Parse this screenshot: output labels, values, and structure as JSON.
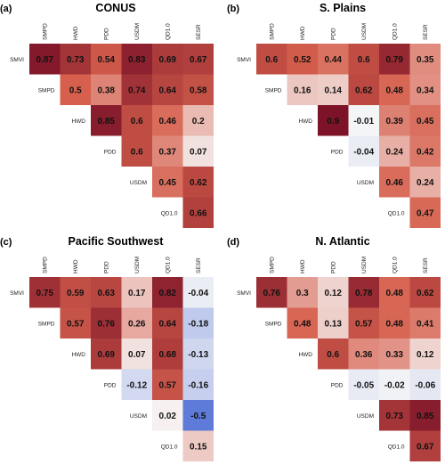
{
  "chart_data": [
    {
      "type": "heatmap",
      "panel_letter": "(a)",
      "title": "CONUS",
      "columns": [
        "SMPD",
        "HWD",
        "PDD",
        "USDM",
        "QD1.0",
        "SESR"
      ],
      "rows": [
        "SMVI",
        "SMPD",
        "HWD",
        "PDD",
        "USDM",
        "QD1.0"
      ],
      "values": [
        [
          0.87,
          0.73,
          0.54,
          0.83,
          0.69,
          0.67
        ],
        [
          null,
          0.5,
          0.38,
          0.74,
          0.64,
          0.58
        ],
        [
          null,
          null,
          0.85,
          0.6,
          0.46,
          0.2
        ],
        [
          null,
          null,
          null,
          0.6,
          0.37,
          0.07
        ],
        [
          null,
          null,
          null,
          null,
          0.45,
          0.62
        ],
        [
          null,
          null,
          null,
          null,
          null,
          0.66
        ]
      ],
      "labels": [
        [
          "0.87",
          "0.73",
          "0.54",
          "0.83",
          "0.69",
          "0.67"
        ],
        [
          null,
          "0.5",
          "0.38",
          "0.74",
          "0.64",
          "0.58"
        ],
        [
          null,
          null,
          "0.85",
          "0.6",
          "0.46",
          "0.2"
        ],
        [
          null,
          null,
          null,
          "0.6",
          "0.37",
          "0.07"
        ],
        [
          null,
          null,
          null,
          null,
          "0.45",
          "0.62"
        ],
        [
          null,
          null,
          null,
          null,
          null,
          "0.66"
        ]
      ],
      "color_range": [
        -1,
        1
      ]
    },
    {
      "type": "heatmap",
      "panel_letter": "(b)",
      "title": "S. Plains",
      "columns": [
        "SMPD",
        "HWD",
        "PDD",
        "USDM",
        "QD1.0",
        "SESR"
      ],
      "rows": [
        "SMVI",
        "SMPD",
        "HWD",
        "PDD",
        "USDM",
        "QD1.0"
      ],
      "values": [
        [
          0.6,
          0.52,
          0.44,
          0.6,
          0.79,
          0.35
        ],
        [
          null,
          0.16,
          0.14,
          0.62,
          0.48,
          0.34
        ],
        [
          null,
          null,
          0.9,
          -0.01,
          0.39,
          0.45
        ],
        [
          null,
          null,
          null,
          -0.04,
          0.24,
          0.42
        ],
        [
          null,
          null,
          null,
          null,
          0.46,
          0.24
        ],
        [
          null,
          null,
          null,
          null,
          null,
          0.47
        ]
      ],
      "labels": [
        [
          "0.6",
          "0.52",
          "0.44",
          "0.6",
          "0.79",
          "0.35"
        ],
        [
          null,
          "0.16",
          "0.14",
          "0.62",
          "0.48",
          "0.34"
        ],
        [
          null,
          null,
          "0.9",
          "-0.01",
          "0.39",
          "0.45"
        ],
        [
          null,
          null,
          null,
          "-0.04",
          "0.24",
          "0.42"
        ],
        [
          null,
          null,
          null,
          null,
          "0.46",
          "0.24"
        ],
        [
          null,
          null,
          null,
          null,
          null,
          "0.47"
        ]
      ],
      "color_range": [
        -1,
        1
      ]
    },
    {
      "type": "heatmap",
      "panel_letter": "(c)",
      "title": "Pacific Southwest",
      "columns": [
        "SMPD",
        "HWD",
        "PDD",
        "USDM",
        "QD1.0",
        "SESR"
      ],
      "rows": [
        "SMVI",
        "SMPD",
        "HWD",
        "PDD",
        "USDM",
        "QD1.0"
      ],
      "values": [
        [
          0.75,
          0.59,
          0.63,
          0.17,
          0.82,
          -0.04
        ],
        [
          null,
          0.57,
          0.76,
          0.26,
          0.64,
          -0.18
        ],
        [
          null,
          null,
          0.69,
          0.07,
          0.68,
          -0.13
        ],
        [
          null,
          null,
          null,
          -0.12,
          0.57,
          -0.16
        ],
        [
          null,
          null,
          null,
          null,
          0.02,
          -0.5
        ],
        [
          null,
          null,
          null,
          null,
          null,
          0.15
        ]
      ],
      "labels": [
        [
          "0.75",
          "0.59",
          "0.63",
          "0.17",
          "0.82",
          "-0.04"
        ],
        [
          null,
          "0.57",
          "0.76",
          "0.26",
          "0.64",
          "-0.18"
        ],
        [
          null,
          null,
          "0.69",
          "0.07",
          "0.68",
          "-0.13"
        ],
        [
          null,
          null,
          null,
          "-0.12",
          "0.57",
          "-0.16"
        ],
        [
          null,
          null,
          null,
          null,
          "0.02",
          "-0.5"
        ],
        [
          null,
          null,
          null,
          null,
          null,
          "0.15"
        ]
      ],
      "color_range": [
        -1,
        1
      ]
    },
    {
      "type": "heatmap",
      "panel_letter": "(d)",
      "title": "N. Atlantic",
      "columns": [
        "SMPD",
        "HWD",
        "PDD",
        "USDM",
        "QD1.0",
        "SESR"
      ],
      "rows": [
        "SMVI",
        "SMPD",
        "HWD",
        "PDD",
        "USDM",
        "QD1.0"
      ],
      "values": [
        [
          0.76,
          0.3,
          0.12,
          0.78,
          0.48,
          0.62
        ],
        [
          null,
          0.48,
          0.13,
          0.57,
          0.48,
          0.41
        ],
        [
          null,
          null,
          0.6,
          0.36,
          0.33,
          0.12
        ],
        [
          null,
          null,
          null,
          -0.05,
          -0.02,
          -0.06
        ],
        [
          null,
          null,
          null,
          null,
          0.73,
          0.85
        ],
        [
          null,
          null,
          null,
          null,
          null,
          0.67
        ]
      ],
      "labels": [
        [
          "0.76",
          "0.3",
          "0.12",
          "0.78",
          "0.48",
          "0.62"
        ],
        [
          null,
          "0.48",
          "0.13",
          "0.57",
          "0.48",
          "0.41"
        ],
        [
          null,
          null,
          "0.6",
          "0.36",
          "0.33",
          "0.12"
        ],
        [
          null,
          null,
          null,
          "-0.05",
          "-0.02",
          "-0.06"
        ],
        [
          null,
          null,
          null,
          null,
          "0.73",
          "0.85"
        ],
        [
          null,
          null,
          null,
          null,
          null,
          "0.67"
        ]
      ],
      "color_range": [
        -1,
        1
      ]
    }
  ],
  "colors": {
    "positive_max": "#67001f",
    "positive_mid": "#d6604d",
    "neutral": "#f7f7f7",
    "negative_max": "#4f6fd6"
  }
}
